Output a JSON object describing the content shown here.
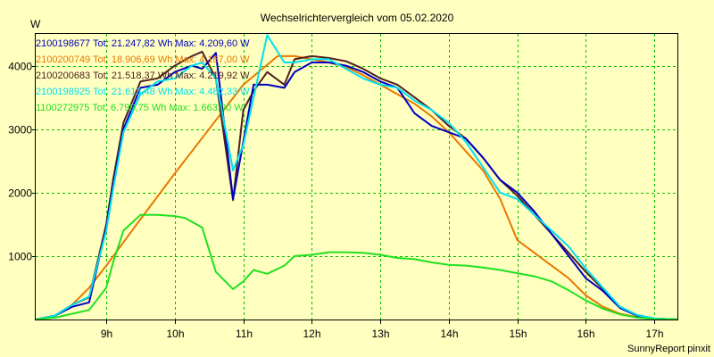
{
  "chart_data": {
    "type": "line",
    "title": "Wechselrichtervergleich vom 05.02.2020",
    "ylabel": "W",
    "xlabel": "",
    "footer": "SunnyReport pinxit",
    "xlim": [
      7.97,
      17.35
    ],
    "ylim": [
      0,
      4500
    ],
    "x_ticks": [
      9,
      10,
      11,
      12,
      13,
      14,
      15,
      16,
      17
    ],
    "x_tick_labels": [
      "9h",
      "10h",
      "11h",
      "12h",
      "13h",
      "14h",
      "15h",
      "16h",
      "17h"
    ],
    "y_ticks": [
      1000,
      2000,
      3000,
      4000
    ],
    "y_tick_labels": [
      "1000",
      "2000",
      "3000",
      "4000"
    ],
    "grid": true,
    "legend_position": "top-left",
    "colors": {
      "background": "#ffffc0",
      "plot_background": "#ffffc0",
      "grid": "#00c000"
    },
    "series": [
      {
        "name": "2100200749 Tot: 18.906,69 Wh Max: 4.167,00 W",
        "color": "#e87800",
        "x": [
          7.97,
          8.25,
          8.5,
          8.75,
          9.0,
          9.5,
          10.0,
          10.5,
          11.0,
          11.5,
          11.75,
          12.0,
          12.25,
          12.5,
          12.75,
          13.0,
          13.25,
          13.5,
          13.75,
          14.0,
          14.25,
          14.5,
          14.75,
          15.0,
          15.25,
          15.5,
          15.75,
          16.0,
          16.25,
          16.5,
          16.75,
          17.0,
          17.35
        ],
        "values": [
          0,
          60,
          230,
          500,
          850,
          1580,
          2300,
          3000,
          3700,
          4150,
          4150,
          4100,
          4050,
          3980,
          3850,
          3700,
          3550,
          3400,
          3200,
          2950,
          2650,
          2350,
          1900,
          1250,
          1050,
          850,
          650,
          380,
          200,
          90,
          40,
          10,
          0
        ]
      },
      {
        "name": "2100200683 Tot: 21.518,37 Wh Max: 4.219,92 W",
        "color": "#502020",
        "x": [
          7.97,
          8.25,
          8.5,
          8.75,
          9.0,
          9.1,
          9.25,
          9.5,
          9.75,
          10.0,
          10.25,
          10.4,
          10.6,
          10.85,
          11.0,
          11.15,
          11.35,
          11.6,
          11.75,
          12.0,
          12.25,
          12.5,
          12.75,
          13.0,
          13.25,
          13.5,
          13.75,
          14.0,
          14.25,
          14.5,
          14.75,
          15.0,
          15.25,
          15.5,
          15.75,
          16.0,
          16.25,
          16.5,
          16.75,
          17.0,
          17.35
        ],
        "values": [
          0,
          60,
          230,
          350,
          1500,
          2200,
          3100,
          3750,
          3800,
          4000,
          4150,
          4220,
          3800,
          1880,
          3300,
          3600,
          3900,
          3700,
          4100,
          4150,
          4120,
          4070,
          3950,
          3800,
          3700,
          3500,
          3300,
          3050,
          2850,
          2550,
          2200,
          1950,
          1650,
          1350,
          1050,
          750,
          480,
          200,
          70,
          15,
          0
        ]
      },
      {
        "name": "2100198677 Tot: 21.247,82 Wh Max: 4.209,60 W",
        "color": "#0000c0",
        "x": [
          7.97,
          8.25,
          8.5,
          8.75,
          9.0,
          9.1,
          9.25,
          9.5,
          9.75,
          10.0,
          10.25,
          10.4,
          10.6,
          10.85,
          11.0,
          11.15,
          11.35,
          11.6,
          11.75,
          12.0,
          12.25,
          12.5,
          12.75,
          13.0,
          13.25,
          13.5,
          13.75,
          14.0,
          14.25,
          14.5,
          14.75,
          15.0,
          15.25,
          15.5,
          15.75,
          16.0,
          16.25,
          16.5,
          16.75,
          17.0,
          17.35
        ],
        "values": [
          0,
          60,
          200,
          270,
          1450,
          2100,
          3000,
          3650,
          3700,
          3900,
          4000,
          3950,
          4200,
          1900,
          2800,
          3700,
          3700,
          3650,
          3900,
          4050,
          4050,
          4000,
          3900,
          3750,
          3650,
          3250,
          3050,
          2950,
          2850,
          2550,
          2200,
          2000,
          1700,
          1350,
          1000,
          650,
          450,
          180,
          60,
          10,
          0
        ]
      },
      {
        "name": "2100198925 Tot: 21.613,48 Wh Max: 4.482,33 W",
        "color": "#00e0f0",
        "x": [
          7.97,
          8.25,
          8.5,
          8.75,
          9.0,
          9.1,
          9.25,
          9.5,
          9.75,
          10.0,
          10.25,
          10.4,
          10.6,
          10.85,
          11.0,
          11.15,
          11.35,
          11.6,
          11.75,
          12.0,
          12.25,
          12.5,
          12.75,
          13.0,
          13.25,
          13.5,
          13.75,
          14.0,
          14.25,
          14.5,
          14.75,
          15.0,
          15.25,
          15.5,
          15.75,
          16.0,
          16.25,
          16.5,
          16.75,
          17.0,
          17.35
        ],
        "values": [
          0,
          60,
          230,
          360,
          1400,
          2050,
          2950,
          3550,
          3750,
          3800,
          4000,
          4050,
          3800,
          2350,
          2750,
          3500,
          4480,
          4050,
          4050,
          4100,
          4100,
          3950,
          3800,
          3700,
          3650,
          3450,
          3300,
          3100,
          2800,
          2400,
          2000,
          1900,
          1650,
          1400,
          1150,
          800,
          500,
          200,
          70,
          15,
          0
        ]
      },
      {
        "name": "1100272975 Tot: 6.799,75 Wh Max: 1.663,00 W",
        "color": "#20e020",
        "x": [
          7.97,
          8.25,
          8.5,
          8.75,
          9.0,
          9.1,
          9.25,
          9.5,
          9.75,
          10.0,
          10.15,
          10.4,
          10.6,
          10.85,
          11.0,
          11.15,
          11.35,
          11.6,
          11.75,
          12.0,
          12.25,
          12.5,
          12.75,
          13.0,
          13.25,
          13.5,
          13.75,
          14.0,
          14.25,
          14.5,
          14.75,
          15.0,
          15.25,
          15.5,
          15.75,
          16.0,
          16.25,
          16.5,
          16.75,
          17.0,
          17.35
        ],
        "values": [
          0,
          30,
          90,
          150,
          500,
          900,
          1400,
          1650,
          1650,
          1630,
          1600,
          1450,
          750,
          480,
          600,
          780,
          720,
          850,
          1000,
          1020,
          1060,
          1060,
          1050,
          1020,
          970,
          950,
          900,
          860,
          850,
          820,
          780,
          730,
          680,
          600,
          460,
          300,
          170,
          80,
          30,
          5,
          0
        ]
      }
    ]
  }
}
